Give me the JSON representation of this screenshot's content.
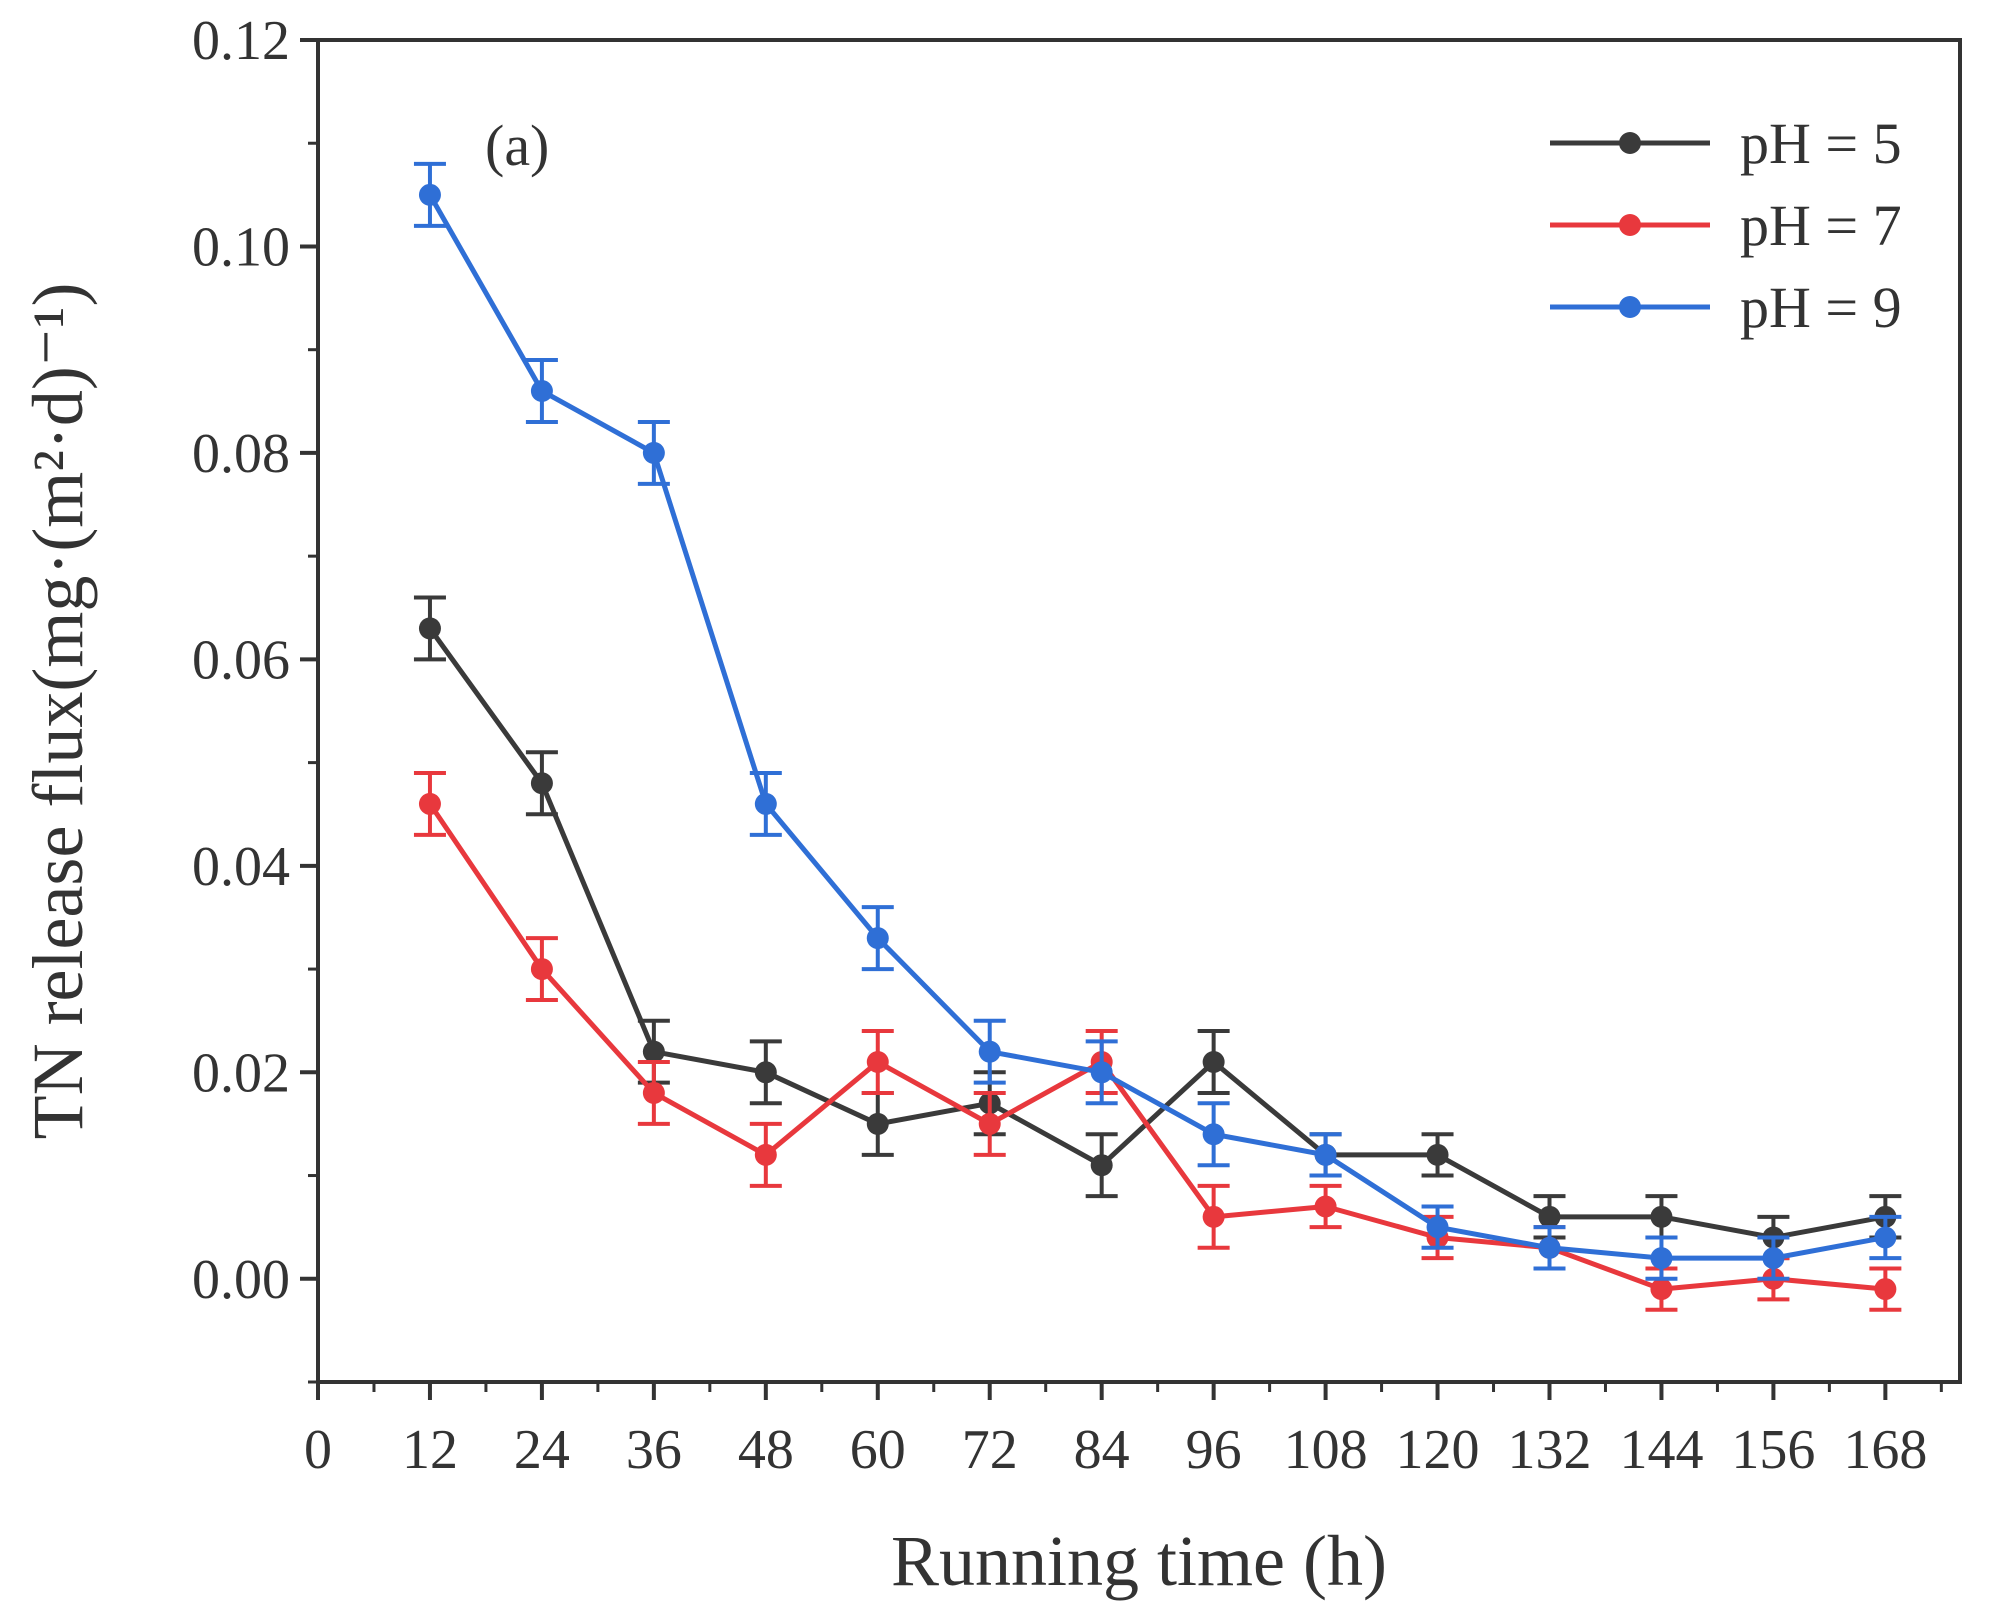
{
  "chart_data": {
    "type": "line",
    "panel_label": "(a)",
    "xlabel": "Running time (h)",
    "ylabel": "TN release flux(mg·(m²·d)⁻¹)",
    "xlim": [
      0,
      176
    ],
    "ylim": [
      -0.01,
      0.12
    ],
    "xticks": [
      0,
      12,
      24,
      36,
      48,
      60,
      72,
      84,
      96,
      108,
      120,
      132,
      144,
      156,
      168
    ],
    "xtick_labels": [
      "0",
      "12",
      "24",
      "36",
      "48",
      "60",
      "72",
      "84",
      "96",
      "108",
      "120",
      "132",
      "144",
      "156",
      "168"
    ],
    "yticks": [
      0.0,
      0.02,
      0.04,
      0.06,
      0.08,
      0.1,
      0.12
    ],
    "ytick_labels": [
      "0.00",
      "0.02",
      "0.04",
      "0.06",
      "0.08",
      "0.10",
      "0.12"
    ],
    "grid": false,
    "legend_position": "top-right",
    "x": [
      12,
      24,
      36,
      48,
      60,
      72,
      84,
      96,
      108,
      120,
      132,
      144,
      156,
      168
    ],
    "series": [
      {
        "name": "pH = 5",
        "color": "#3a3a3a",
        "values": [
          0.063,
          0.048,
          0.022,
          0.02,
          0.015,
          0.017,
          0.011,
          0.021,
          0.012,
          0.012,
          0.006,
          0.006,
          0.004,
          0.006
        ],
        "errors": [
          0.003,
          0.003,
          0.003,
          0.003,
          0.003,
          0.003,
          0.003,
          0.003,
          0.002,
          0.002,
          0.002,
          0.002,
          0.002,
          0.002
        ]
      },
      {
        "name": "pH = 7",
        "color": "#e8383d",
        "values": [
          0.046,
          0.03,
          0.018,
          0.012,
          0.021,
          0.015,
          0.021,
          0.006,
          0.007,
          0.004,
          0.003,
          -0.001,
          0.0,
          -0.001
        ],
        "errors": [
          0.003,
          0.003,
          0.003,
          0.003,
          0.003,
          0.003,
          0.003,
          0.003,
          0.002,
          0.002,
          0.002,
          0.002,
          0.002,
          0.002
        ]
      },
      {
        "name": "pH = 9",
        "color": "#2f6fd6",
        "values": [
          0.105,
          0.086,
          0.08,
          0.046,
          0.033,
          0.022,
          0.02,
          0.014,
          0.012,
          0.005,
          0.003,
          0.002,
          0.002,
          0.004
        ],
        "errors": [
          0.003,
          0.003,
          0.003,
          0.003,
          0.003,
          0.003,
          0.003,
          0.003,
          0.002,
          0.002,
          0.002,
          0.002,
          0.002,
          0.002
        ]
      }
    ]
  }
}
